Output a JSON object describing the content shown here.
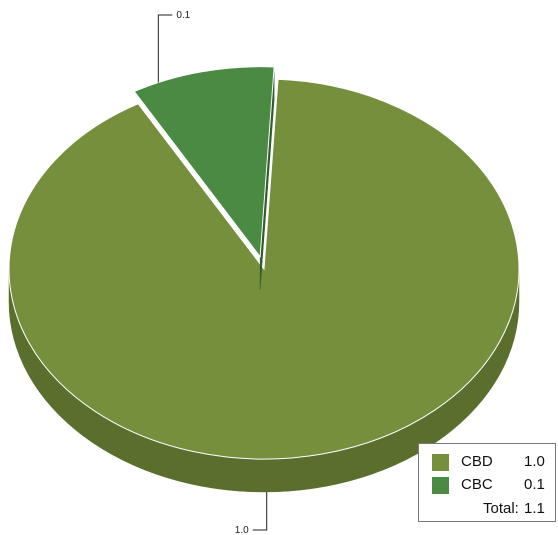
{
  "chart_data": {
    "type": "pie",
    "three_d": true,
    "legend_position": "bottom-right",
    "slices": [
      {
        "label": "CBD",
        "value": 1.0,
        "value_text": "1.0",
        "color": "#758f3d",
        "side_color": "#5a6f2d",
        "exploded": false
      },
      {
        "label": "CBC",
        "value": 0.1,
        "value_text": "0.1",
        "color": "#4b8a43",
        "side_color": "#2f5d2b",
        "exploded": true
      }
    ],
    "total_label": "Total:",
    "total_value": "1.1"
  }
}
